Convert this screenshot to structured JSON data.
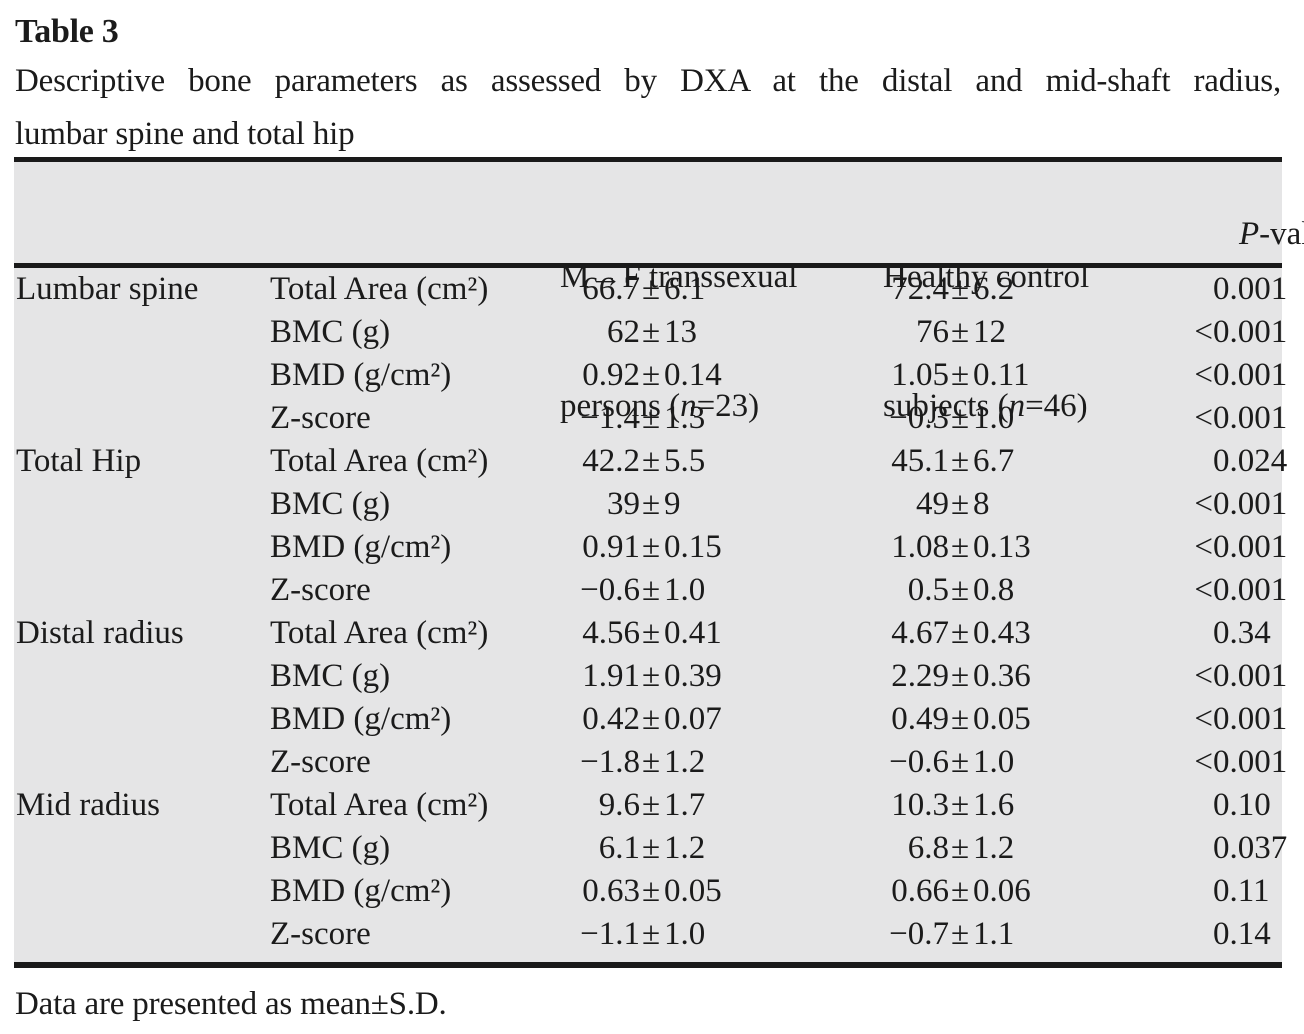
{
  "title": "Table 3",
  "caption": {
    "line1": "Descriptive bone parameters as assessed by DXA at the distal and mid-shaft radius,",
    "line2": "lumbar spine and total hip"
  },
  "symbols": {
    "pm": "±"
  },
  "header": {
    "group1": {
      "line1": "M→F transsexual",
      "line2_pre": "persons (",
      "n": "n",
      "line2_post": "=23)"
    },
    "group2": {
      "line1": "Healthy control",
      "line2_pre": "subjects (",
      "n": "n",
      "line2_post": "=46)"
    },
    "pcol": {
      "p": "P",
      "rest": "-value"
    }
  },
  "rows": [
    {
      "region": "Lumbar spine",
      "param": "Total Area (cm²)",
      "m1": "66.7",
      "s1": "6.1",
      "m2": "72.4",
      "s2": "6.2",
      "pp": "",
      "pv": "0.001"
    },
    {
      "region": "",
      "param": "BMC (g)",
      "m1": "62",
      "s1": "13",
      "m2": "76",
      "s2": "12",
      "pp": "<",
      "pv": "0.001"
    },
    {
      "region": "",
      "param": "BMD (g/cm²)",
      "m1": "0.92",
      "s1": "0.14",
      "m2": "1.05",
      "s2": "0.11",
      "pp": "<",
      "pv": "0.001"
    },
    {
      "region": "",
      "param": "Z-score",
      "m1": "−1.4",
      "s1": "1.3",
      "m2": "−0.3",
      "s2": "1.0",
      "pp": "<",
      "pv": "0.001"
    },
    {
      "region": "Total Hip",
      "param": "Total Area (cm²)",
      "m1": "42.2",
      "s1": "5.5",
      "m2": "45.1",
      "s2": "6.7",
      "pp": "",
      "pv": "0.024"
    },
    {
      "region": "",
      "param": "BMC (g)",
      "m1": "39",
      "s1": "9",
      "m2": "49",
      "s2": "8",
      "pp": "<",
      "pv": "0.001"
    },
    {
      "region": "",
      "param": "BMD (g/cm²)",
      "m1": "0.91",
      "s1": "0.15",
      "m2": "1.08",
      "s2": "0.13",
      "pp": "<",
      "pv": "0.001"
    },
    {
      "region": "",
      "param": "Z-score",
      "m1": "−0.6",
      "s1": "1.0",
      "m2": "0.5",
      "s2": "0.8",
      "pp": "<",
      "pv": "0.001"
    },
    {
      "region": "Distal radius",
      "param": "Total Area (cm²)",
      "m1": "4.56",
      "s1": "0.41",
      "m2": "4.67",
      "s2": "0.43",
      "pp": "",
      "pv": "0.34"
    },
    {
      "region": "",
      "param": "BMC (g)",
      "m1": "1.91",
      "s1": "0.39",
      "m2": "2.29",
      "s2": "0.36",
      "pp": "<",
      "pv": "0.001"
    },
    {
      "region": "",
      "param": "BMD (g/cm²)",
      "m1": "0.42",
      "s1": "0.07",
      "m2": "0.49",
      "s2": "0.05",
      "pp": "<",
      "pv": "0.001"
    },
    {
      "region": "",
      "param": "Z-score",
      "m1": "−1.8",
      "s1": "1.2",
      "m2": "−0.6",
      "s2": "1.0",
      "pp": "<",
      "pv": "0.001"
    },
    {
      "region": "Mid radius",
      "param": "Total Area (cm²)",
      "m1": "9.6",
      "s1": "1.7",
      "m2": "10.3",
      "s2": "1.6",
      "pp": "",
      "pv": "0.10"
    },
    {
      "region": "",
      "param": "BMC (g)",
      "m1": "6.1",
      "s1": "1.2",
      "m2": "6.8",
      "s2": "1.2",
      "pp": "",
      "pv": "0.037"
    },
    {
      "region": "",
      "param": "BMD (g/cm²)",
      "m1": "0.63",
      "s1": "0.05",
      "m2": "0.66",
      "s2": "0.06",
      "pp": "",
      "pv": "0.11"
    },
    {
      "region": "",
      "param": "Z-score",
      "m1": "−1.1",
      "s1": "1.0",
      "m2": "−0.7",
      "s2": "1.1",
      "pp": "",
      "pv": "0.14"
    }
  ],
  "footnote": "Data are presented as mean±S.D.",
  "colors": {
    "table_background": "#e5e5e6",
    "rule": "#1a1a1a",
    "text": "#1b1b1b"
  }
}
